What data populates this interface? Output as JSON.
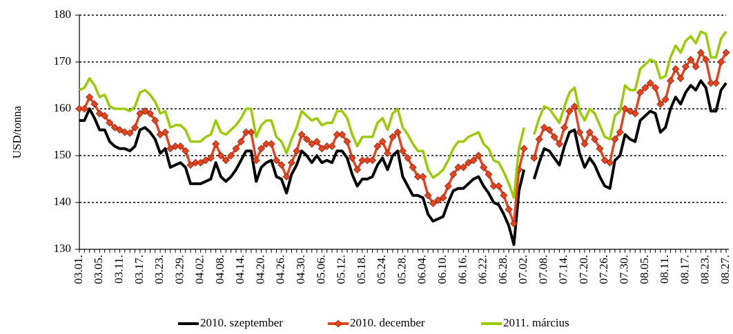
{
  "chart_data": {
    "type": "line",
    "y_label": "USD/tonna",
    "categories": [
      "03.01.",
      null,
      null,
      null,
      "03.05.",
      null,
      null,
      null,
      "03.11.",
      null,
      null,
      null,
      "03.17.",
      null,
      null,
      null,
      "03.23.",
      null,
      null,
      null,
      "03.29.",
      null,
      null,
      null,
      "04.02.",
      null,
      null,
      null,
      "04.08.",
      null,
      null,
      null,
      "04.14.",
      null,
      null,
      null,
      "04.20.",
      null,
      null,
      null,
      "04.26.",
      null,
      null,
      null,
      "04.30.",
      null,
      null,
      null,
      "05.06.",
      null,
      null,
      null,
      "05.12.",
      null,
      null,
      null,
      "05.18.",
      null,
      null,
      null,
      "05.24.",
      null,
      null,
      null,
      "05.28.",
      null,
      null,
      null,
      "06.04.",
      null,
      null,
      null,
      "06.10.",
      null,
      null,
      null,
      "06.16.",
      null,
      null,
      null,
      "06.22.",
      null,
      null,
      null,
      "06.28.",
      null,
      null,
      null,
      "07.02.",
      null,
      null,
      null,
      "07.08.",
      null,
      null,
      null,
      "07.14.",
      null,
      null,
      null,
      "07.20.",
      null,
      null,
      null,
      "07.26.",
      null,
      null,
      null,
      "07.30.",
      null,
      null,
      null,
      "08.05.",
      null,
      null,
      null,
      "08.11.",
      null,
      null,
      null,
      "08.17.",
      null,
      null,
      null,
      "08.23.",
      null,
      null,
      null,
      "08.27."
    ],
    "series": [
      {
        "name": "2010. szeptember",
        "color": "#000000",
        "marker": false,
        "values": [
          157.5,
          157.5,
          160,
          158,
          155.5,
          155.5,
          153,
          152,
          151.5,
          151.5,
          151,
          152,
          155.5,
          156,
          155,
          153.5,
          150.5,
          151.5,
          147.5,
          148,
          148.5,
          147.5,
          144,
          144,
          144,
          144.5,
          145,
          148.5,
          145.5,
          144.5,
          145.5,
          147,
          149,
          151,
          151,
          144.5,
          147.5,
          148.5,
          149,
          145.5,
          145,
          142,
          146,
          148,
          151,
          150,
          148.5,
          150,
          148.5,
          149,
          148.5,
          151,
          151,
          149.5,
          146,
          143.5,
          145,
          145,
          145.5,
          148,
          149.5,
          147,
          150,
          151,
          145.5,
          143.5,
          141.5,
          141.5,
          141,
          137.5,
          136,
          136.5,
          137,
          140,
          142.5,
          143,
          143,
          144,
          145,
          145.5,
          143.5,
          142,
          140,
          139.5,
          137.5,
          135,
          131,
          142.5,
          147,
          null,
          145,
          148.5,
          151.5,
          151,
          149.5,
          148,
          152,
          155,
          155.5,
          150.5,
          147.5,
          149.5,
          148,
          145.5,
          143.5,
          143,
          149,
          150,
          154.5,
          153.5,
          153,
          157.5,
          158.5,
          159.5,
          159,
          155,
          156,
          160,
          162.5,
          161,
          163.5,
          165,
          164,
          166,
          164.5,
          159.5,
          159.5,
          164,
          165.5
        ]
      },
      {
        "name": "2010. december",
        "color": "#e8431e",
        "marker": true,
        "values": [
          160,
          160,
          162.5,
          161,
          159,
          158.5,
          157,
          156,
          155.5,
          155,
          154.8,
          156,
          159,
          159.5,
          159,
          157.5,
          154.5,
          155,
          151.5,
          152,
          152,
          151,
          148,
          148.5,
          148.5,
          149,
          149.5,
          152.5,
          150,
          149,
          150,
          151.5,
          153,
          155,
          155,
          149,
          151.5,
          152.5,
          152.5,
          149,
          148,
          145.5,
          148.5,
          151,
          154.5,
          153.5,
          152.5,
          153,
          151.5,
          152,
          152,
          154.5,
          154.5,
          153,
          149.5,
          147,
          149,
          149,
          149,
          152,
          153,
          150.5,
          154,
          155,
          151,
          149.5,
          147.5,
          145.5,
          145.5,
          141.5,
          139.8,
          140.5,
          141,
          143.5,
          146,
          147.5,
          147.5,
          148.5,
          149,
          150,
          147.5,
          146,
          143.5,
          143.5,
          141.5,
          138.5,
          135.5,
          147,
          151.5,
          null,
          149.5,
          153.5,
          156,
          155.5,
          154,
          152.5,
          156,
          159.5,
          160.5,
          155,
          152.5,
          155,
          153.5,
          151.5,
          149,
          148.5,
          153.5,
          155,
          160,
          159.5,
          159,
          163.5,
          164.5,
          165.5,
          164.5,
          161,
          162,
          166,
          168.5,
          166.5,
          169,
          170.5,
          169,
          172,
          170.5,
          165.5,
          165.5,
          170,
          172
        ]
      },
      {
        "name": "2011. március",
        "color": "#99cc00",
        "marker": false,
        "values": [
          164,
          164.5,
          166.5,
          165,
          162.5,
          163,
          160.5,
          160,
          160,
          160,
          159.5,
          160.5,
          163.5,
          164,
          163,
          161.5,
          159,
          159.5,
          156,
          156.5,
          156.5,
          155.5,
          153,
          153,
          153,
          154,
          154.5,
          157.5,
          155,
          154.5,
          155.5,
          156.5,
          158,
          160,
          160,
          154,
          156.5,
          157.5,
          157.5,
          154,
          153,
          150.5,
          153.5,
          156,
          159.5,
          158.5,
          157.5,
          158,
          156.5,
          157,
          157,
          159.5,
          159.5,
          158,
          154.5,
          152,
          154,
          154,
          154,
          157,
          158,
          155.5,
          159,
          160,
          156,
          154.5,
          152.5,
          151,
          151,
          147,
          145.3,
          146,
          147,
          149,
          151.5,
          153,
          153,
          154,
          154.5,
          155,
          152.5,
          151.5,
          149,
          148.5,
          146.5,
          144,
          141,
          151.5,
          156,
          null,
          154.5,
          158,
          160.5,
          160,
          158.5,
          157,
          160.5,
          163.5,
          164.5,
          159.5,
          157.5,
          160,
          159,
          156.5,
          154,
          153.5,
          158.5,
          159.5,
          165,
          164,
          164,
          168.5,
          169.5,
          170.5,
          170,
          166.5,
          167,
          171,
          173.5,
          172,
          174.5,
          175.5,
          174,
          176.5,
          176,
          171,
          171,
          175,
          176.5
        ]
      }
    ],
    "ylim": [
      130,
      180
    ],
    "yticks": [
      130,
      140,
      150,
      160,
      170,
      180
    ],
    "grid": true,
    "legend": "bottom"
  }
}
